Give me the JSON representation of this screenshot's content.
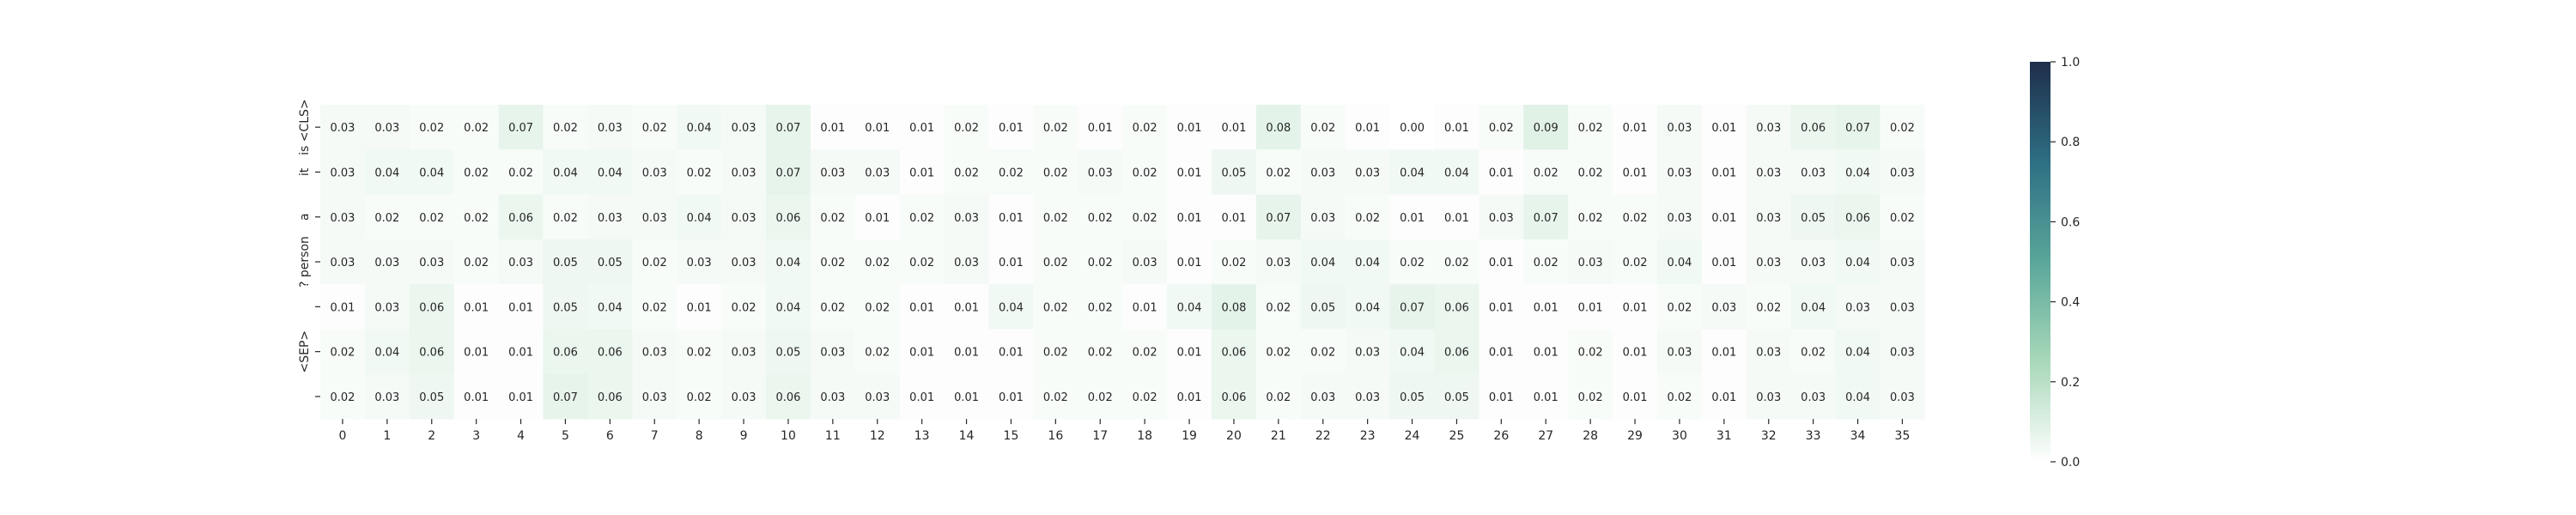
{
  "chart_data": {
    "type": "heatmap",
    "title": "",
    "xlabel": "",
    "ylabel": "",
    "x_categories": [
      "0",
      "1",
      "2",
      "3",
      "4",
      "5",
      "6",
      "7",
      "8",
      "9",
      "10",
      "11",
      "12",
      "13",
      "14",
      "15",
      "16",
      "17",
      "18",
      "19",
      "20",
      "21",
      "22",
      "23",
      "24",
      "25",
      "26",
      "27",
      "28",
      "29",
      "30",
      "31",
      "32",
      "33",
      "34",
      "35"
    ],
    "y_categories": [
      "is <CLS>",
      "it",
      "a",
      "? person",
      "",
      "<SEP>",
      ""
    ],
    "values": [
      [
        0.03,
        0.03,
        0.02,
        0.02,
        0.07,
        0.02,
        0.03,
        0.02,
        0.04,
        0.03,
        0.07,
        0.01,
        0.01,
        0.01,
        0.02,
        0.01,
        0.02,
        0.01,
        0.02,
        0.01,
        0.01,
        0.08,
        0.02,
        0.01,
        0.0,
        0.01,
        0.02,
        0.09,
        0.02,
        0.01,
        0.03,
        0.01,
        0.03,
        0.06,
        0.07,
        0.02
      ],
      [
        0.03,
        0.04,
        0.04,
        0.02,
        0.02,
        0.04,
        0.04,
        0.03,
        0.02,
        0.03,
        0.07,
        0.03,
        0.03,
        0.01,
        0.02,
        0.02,
        0.02,
        0.03,
        0.02,
        0.01,
        0.05,
        0.02,
        0.03,
        0.03,
        0.04,
        0.04,
        0.01,
        0.02,
        0.02,
        0.01,
        0.03,
        0.01,
        0.03,
        0.03,
        0.04,
        0.03
      ],
      [
        0.03,
        0.02,
        0.02,
        0.02,
        0.06,
        0.02,
        0.03,
        0.03,
        0.04,
        0.03,
        0.06,
        0.02,
        0.01,
        0.02,
        0.03,
        0.01,
        0.02,
        0.02,
        0.02,
        0.01,
        0.01,
        0.07,
        0.03,
        0.02,
        0.01,
        0.01,
        0.03,
        0.07,
        0.02,
        0.02,
        0.03,
        0.01,
        0.03,
        0.05,
        0.06,
        0.02
      ],
      [
        0.03,
        0.03,
        0.03,
        0.02,
        0.03,
        0.05,
        0.05,
        0.02,
        0.03,
        0.03,
        0.04,
        0.02,
        0.02,
        0.02,
        0.03,
        0.01,
        0.02,
        0.02,
        0.03,
        0.01,
        0.02,
        0.03,
        0.04,
        0.04,
        0.02,
        0.02,
        0.01,
        0.02,
        0.03,
        0.02,
        0.04,
        0.01,
        0.03,
        0.03,
        0.04,
        0.03
      ],
      [
        0.01,
        0.03,
        0.06,
        0.01,
        0.01,
        0.05,
        0.04,
        0.02,
        0.01,
        0.02,
        0.04,
        0.02,
        0.02,
        0.01,
        0.01,
        0.04,
        0.02,
        0.02,
        0.01,
        0.04,
        0.08,
        0.02,
        0.05,
        0.04,
        0.07,
        0.06,
        0.01,
        0.01,
        0.01,
        0.01,
        0.02,
        0.03,
        0.02,
        0.04,
        0.03,
        0.03
      ],
      [
        0.02,
        0.04,
        0.06,
        0.01,
        0.01,
        0.06,
        0.06,
        0.03,
        0.02,
        0.03,
        0.05,
        0.03,
        0.02,
        0.01,
        0.01,
        0.01,
        0.02,
        0.02,
        0.02,
        0.01,
        0.06,
        0.02,
        0.02,
        0.03,
        0.04,
        0.06,
        0.01,
        0.01,
        0.02,
        0.01,
        0.03,
        0.01,
        0.03,
        0.02,
        0.04,
        0.03
      ],
      [
        0.02,
        0.03,
        0.05,
        0.01,
        0.01,
        0.07,
        0.06,
        0.03,
        0.02,
        0.03,
        0.06,
        0.03,
        0.03,
        0.01,
        0.01,
        0.01,
        0.02,
        0.02,
        0.02,
        0.01,
        0.06,
        0.02,
        0.03,
        0.03,
        0.05,
        0.05,
        0.01,
        0.01,
        0.02,
        0.01,
        0.02,
        0.01,
        0.03,
        0.03,
        0.04,
        0.03
      ]
    ],
    "value_format": "0.00",
    "colorbar": {
      "min": 0.0,
      "max": 1.0,
      "ticks": [
        "0.0",
        "0.2",
        "0.4",
        "0.6",
        "0.8",
        "1.0"
      ],
      "colors": [
        "#ffffff",
        "#a8d8b9",
        "#5aa69a",
        "#2e6f84",
        "#1e2e4a"
      ]
    },
    "grid": false,
    "legend": "colorbar-right"
  }
}
